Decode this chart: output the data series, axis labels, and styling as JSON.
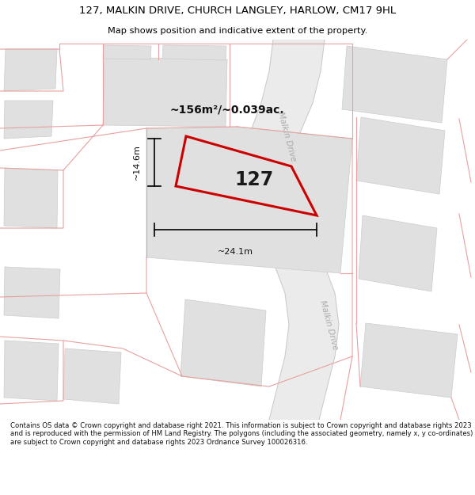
{
  "title_line1": "127, MALKIN DRIVE, CHURCH LANGLEY, HARLOW, CM17 9HL",
  "title_line2": "Map shows position and indicative extent of the property.",
  "footer_text": "Contains OS data © Crown copyright and database right 2021. This information is subject to Crown copyright and database rights 2023 and is reproduced with the permission of HM Land Registry. The polygons (including the associated geometry, namely x, y co-ordinates) are subject to Crown copyright and database rights 2023 Ordnance Survey 100026316.",
  "area_label": "~156m²/~0.039ac.",
  "property_number": "127",
  "dim_width": "~24.1m",
  "dim_height": "~14.6m",
  "road_label_upper": "Malkin Drive",
  "road_label_lower": "Malkin Drive",
  "plot_color": "#cc0000",
  "building_color": "#e0e0e0",
  "pink_line": "#e8a0a0",
  "gray_line": "#cccccc",
  "road_fill": "#ebebeb",
  "road_line": "#cccccc"
}
